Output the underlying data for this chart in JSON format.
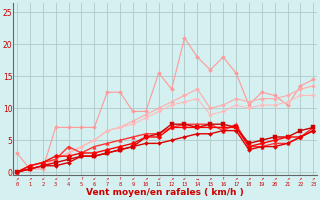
{
  "x": [
    0,
    1,
    2,
    3,
    4,
    5,
    6,
    7,
    8,
    9,
    10,
    11,
    12,
    13,
    14,
    15,
    16,
    17,
    18,
    19,
    20,
    21,
    22,
    23
  ],
  "series": [
    {
      "color": "#ff9999",
      "lw": 0.8,
      "marker": "D",
      "markersize": 2.0,
      "y": [
        3.0,
        0.5,
        0.5,
        7.0,
        7.0,
        7.0,
        7.0,
        12.5,
        12.5,
        9.5,
        9.5,
        15.5,
        13.0,
        21.0,
        18.0,
        16.0,
        18.0,
        15.5,
        10.5,
        12.5,
        12.0,
        10.5,
        13.5,
        14.5
      ]
    },
    {
      "color": "#ffaaaa",
      "lw": 0.8,
      "marker": "D",
      "markersize": 2.0,
      "y": [
        0.0,
        0.5,
        1.0,
        2.0,
        3.0,
        4.0,
        5.0,
        6.5,
        7.0,
        8.0,
        9.0,
        10.0,
        11.0,
        12.0,
        13.0,
        10.0,
        10.5,
        11.5,
        11.0,
        11.5,
        11.5,
        12.0,
        13.0,
        13.5
      ]
    },
    {
      "color": "#ffbbbb",
      "lw": 0.8,
      "marker": "D",
      "markersize": 2.0,
      "y": [
        0.0,
        0.5,
        1.0,
        2.0,
        3.0,
        4.0,
        5.0,
        6.5,
        7.0,
        7.5,
        8.5,
        9.5,
        10.5,
        11.0,
        11.5,
        9.0,
        9.5,
        10.5,
        10.0,
        10.5,
        10.5,
        11.0,
        12.0,
        12.0
      ]
    },
    {
      "color": "#ff3333",
      "lw": 1.0,
      "marker": "^",
      "markersize": 2.5,
      "y": [
        0.0,
        1.0,
        1.5,
        2.0,
        4.0,
        3.0,
        4.0,
        4.5,
        5.0,
        5.5,
        6.0,
        6.0,
        7.0,
        7.5,
        7.5,
        7.5,
        6.5,
        7.5,
        4.0,
        4.0,
        4.5,
        4.5,
        5.5,
        7.0
      ]
    },
    {
      "color": "#cc0000",
      "lw": 1.0,
      "marker": "s",
      "markersize": 2.5,
      "y": [
        0.0,
        0.5,
        1.0,
        1.5,
        2.0,
        2.5,
        2.5,
        3.0,
        3.5,
        4.0,
        5.5,
        6.0,
        7.5,
        7.5,
        7.0,
        7.5,
        7.5,
        7.0,
        4.5,
        5.0,
        5.5,
        5.5,
        6.5,
        7.0
      ]
    },
    {
      "color": "#ff0000",
      "lw": 1.0,
      "marker": "D",
      "markersize": 2.5,
      "y": [
        0.0,
        1.0,
        1.5,
        2.5,
        2.5,
        3.0,
        3.0,
        3.5,
        4.0,
        4.5,
        5.5,
        5.5,
        7.0,
        7.0,
        7.0,
        7.0,
        7.0,
        7.0,
        4.0,
        4.5,
        5.0,
        5.5,
        5.5,
        6.5
      ]
    },
    {
      "color": "#dd0000",
      "lw": 1.0,
      "marker": "D",
      "markersize": 2.0,
      "y": [
        0.0,
        0.5,
        1.0,
        1.0,
        1.5,
        2.5,
        2.5,
        3.0,
        3.5,
        4.0,
        4.5,
        4.5,
        5.0,
        5.5,
        6.0,
        6.0,
        6.5,
        6.5,
        3.5,
        4.0,
        4.0,
        4.5,
        5.5,
        6.5
      ]
    }
  ],
  "xlabel": "Vent moyen/en rafales ( km/h )",
  "xlabel_color": "#cc0000",
  "ylabel_ticks": [
    0,
    5,
    10,
    15,
    20,
    25
  ],
  "xlim": [
    -0.3,
    23.3
  ],
  "ylim": [
    -0.5,
    26.5
  ],
  "bg_color": "#d4f0f0",
  "grid_color": "#b0c8c8",
  "tick_color": "#cc0000",
  "arrow_labels": [
    "↗",
    "↗",
    "↙",
    "↙",
    "↗",
    "↑",
    "↙",
    "↗",
    "↑",
    "↙",
    "↗",
    "↙",
    "↗",
    "↙",
    "→",
    "↗",
    "↑",
    "↗",
    "↗",
    "↗",
    "↗",
    "↗",
    "↗",
    "↗"
  ]
}
